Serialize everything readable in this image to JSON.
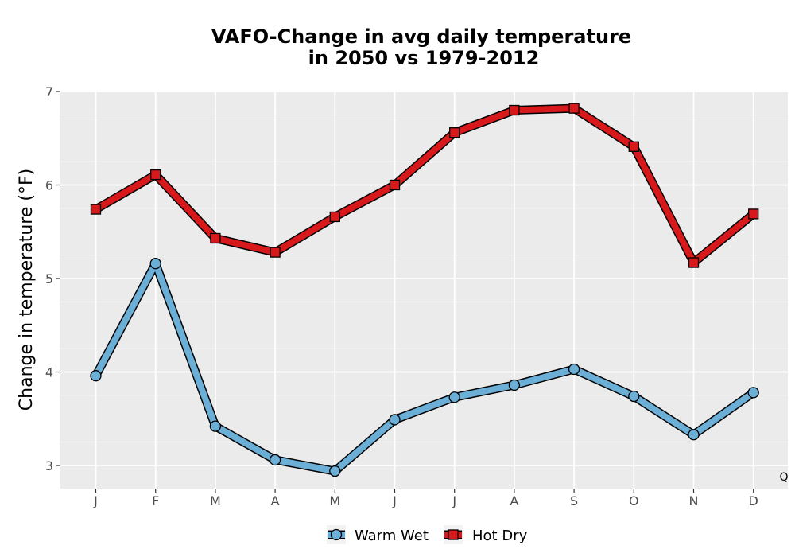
{
  "chart_data": {
    "type": "line",
    "title_line1": "VAFO-Change in avg daily temperature",
    "title_line2": "in 2050 vs 1979-2012",
    "xlabel": "",
    "ylabel": "Change in temperature (°F)",
    "categories": [
      "J",
      "F",
      "M",
      "A",
      "M",
      "J",
      "J",
      "A",
      "S",
      "O",
      "N",
      "D"
    ],
    "ylim": [
      2.75,
      7.0
    ],
    "yticks": [
      3,
      4,
      5,
      6,
      7
    ],
    "grid": true,
    "legend_position": "bottom",
    "corner_label": "Q",
    "series": [
      {
        "name": "Warm Wet",
        "marker": "circle",
        "fill_color": "#6BAED6",
        "values": [
          3.96,
          5.16,
          3.42,
          3.06,
          2.94,
          3.49,
          3.73,
          3.86,
          4.03,
          3.74,
          3.33,
          3.78
        ]
      },
      {
        "name": "Hot Dry",
        "marker": "square",
        "fill_color": "#D7191C",
        "values": [
          5.74,
          6.11,
          5.43,
          5.28,
          5.66,
          6.0,
          6.56,
          6.8,
          6.82,
          6.41,
          5.17,
          5.69
        ]
      }
    ]
  }
}
